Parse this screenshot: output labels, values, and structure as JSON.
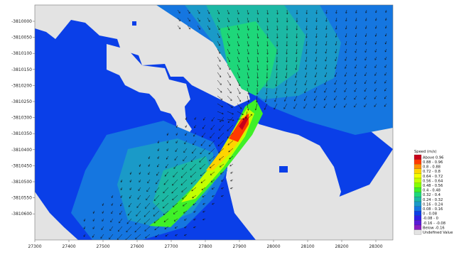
{
  "chart_data": {
    "type": "heatmap",
    "title": "",
    "xlabel": "",
    "ylabel": "",
    "xlim": [
      27300,
      28350
    ],
    "ylim": [
      -3810650,
      -3809970
    ],
    "x_ticks": [
      "27300",
      "27400",
      "27500",
      "27600",
      "27700",
      "27800",
      "27900",
      "28000",
      "28100",
      "28200",
      "28300"
    ],
    "y_ticks": [
      "-3810000",
      "-3810050",
      "-3810100",
      "-3810150",
      "-3810200",
      "-3810250",
      "-3810300",
      "-3810350",
      "-3810400",
      "-3810450",
      "-3810500",
      "-3810550",
      "-3810600"
    ],
    "legend": {
      "title": "Speed (m/s)",
      "placement": "right",
      "entries": [
        {
          "label": "Above  0.96",
          "color": "#c8001a"
        },
        {
          "label": "0.88 - 0.96",
          "color": "#ff3a00"
        },
        {
          "label": "0.8 - 0.88",
          "color": "#ff9000"
        },
        {
          "label": "0.72 - 0.8",
          "color": "#ffd400"
        },
        {
          "label": "0.64 - 0.72",
          "color": "#f4ff00"
        },
        {
          "label": "0.56 - 0.64",
          "color": "#c4ff00"
        },
        {
          "label": "0.48 - 0.56",
          "color": "#84ff00"
        },
        {
          "label": "0.4 - 0.48",
          "color": "#3ff028"
        },
        {
          "label": "0.32 - 0.4",
          "color": "#1ed77a"
        },
        {
          "label": "0.24 - 0.32",
          "color": "#1cb8a4"
        },
        {
          "label": "0.16 - 0.24",
          "color": "#1a9ac8"
        },
        {
          "label": "0.08 - 0.16",
          "color": "#1576e0"
        },
        {
          "label": "0 - 0.08",
          "color": "#0a3fe8"
        },
        {
          "label": "-0.08 - 0",
          "color": "#2d1ee6"
        },
        {
          "label": "-0.16 - -0.08",
          "color": "#5a1ad8"
        },
        {
          "label": "Below -0.16",
          "color": "#8a1cc0"
        },
        {
          "label": "Undefined Value",
          "color": "#e3e3e3"
        }
      ]
    }
  },
  "colors": {
    "land": "#e3e3e3",
    "background": "#0a3fe8",
    "arrow": "#111111"
  }
}
